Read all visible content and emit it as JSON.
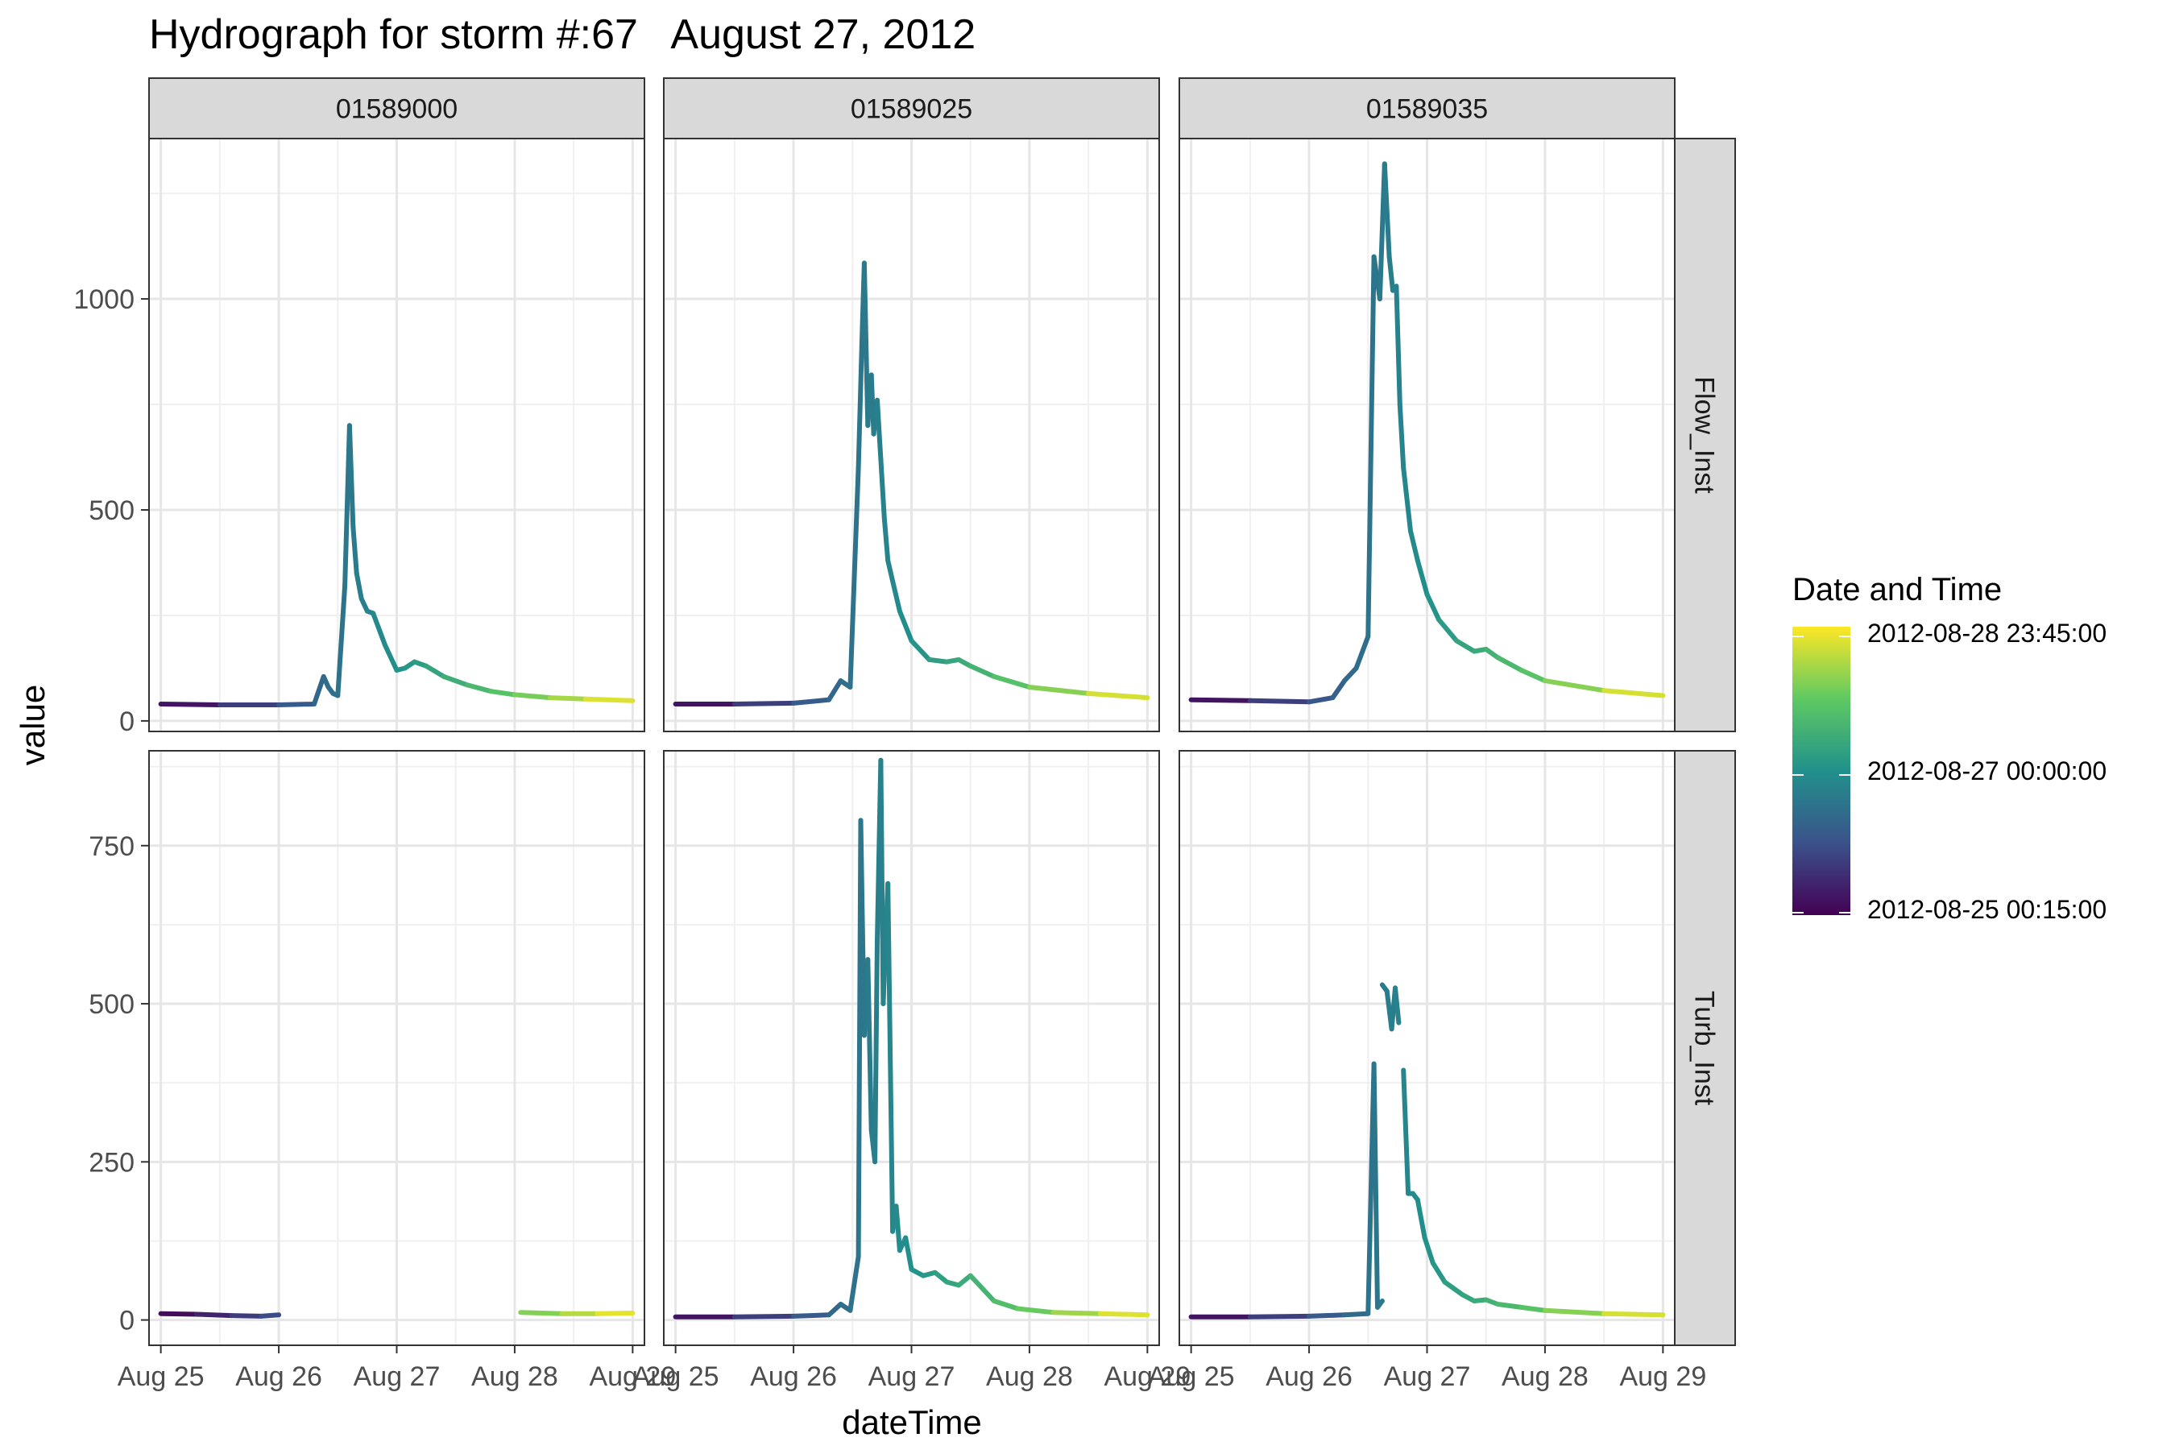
{
  "chart_data": {
    "type": "line",
    "title": "Hydrograph for storm #:67   August 27, 2012",
    "xlabel": "dateTime",
    "ylabel": "value",
    "x_tick_labels": [
      "Aug 25",
      "Aug 26",
      "Aug 27",
      "Aug 28",
      "Aug 29"
    ],
    "x_ticks_days": [
      25,
      26,
      27,
      28,
      29
    ],
    "xlim_days": [
      24.9,
      29.1
    ],
    "columns": [
      "01589000",
      "01589025",
      "01589035"
    ],
    "rows": [
      {
        "label": "Flow_Inst",
        "ylim": [
          -25,
          1380
        ],
        "y_ticks": [
          0,
          500,
          1000
        ],
        "y_minor": [
          250,
          750,
          1250
        ]
      },
      {
        "label": "Turb_Inst",
        "ylim": [
          -40,
          900
        ],
        "y_ticks": [
          0,
          250,
          500,
          750
        ],
        "y_minor": [
          125,
          375,
          625,
          875
        ]
      }
    ],
    "grid": true,
    "legend": {
      "title": "Date and Time",
      "placement": "right",
      "labels": [
        "2012-08-28 23:45:00",
        "2012-08-27 00:00:00",
        "2012-08-25 00:15:00"
      ],
      "colors": [
        "#440154",
        "#3b528b",
        "#21918c",
        "#5ec962",
        "#fde725"
      ]
    },
    "panels": [
      {
        "column": "01589000",
        "row": "Flow_Inst",
        "segments": [
          {
            "x": [
              25.0,
              25.5,
              26.0,
              26.3,
              26.38,
              26.42,
              26.46,
              26.5,
              26.56,
              26.6,
              26.63,
              26.66,
              26.7,
              26.75,
              26.8,
              26.9,
              27.0,
              27.07,
              27.15,
              27.25,
              27.4,
              27.6,
              27.8,
              28.0,
              28.3,
              28.6,
              29.0
            ],
            "y": [
              40,
              38,
              38,
              40,
              105,
              80,
              65,
              60,
              320,
              700,
              460,
              350,
              290,
              260,
              255,
              180,
              120,
              125,
              140,
              130,
              105,
              85,
              70,
              62,
              55,
              52,
              48
            ]
          }
        ]
      },
      {
        "column": "01589025",
        "row": "Flow_Inst",
        "segments": [
          {
            "x": [
              25.0,
              25.5,
              26.0,
              26.3,
              26.4,
              26.48,
              26.55,
              26.58,
              26.6,
              26.63,
              26.66,
              26.68,
              26.71,
              26.74,
              26.77,
              26.8,
              26.85,
              26.9,
              27.0,
              27.15,
              27.3,
              27.4,
              27.5,
              27.7,
              28.0,
              28.5,
              29.0
            ],
            "y": [
              40,
              40,
              42,
              50,
              95,
              80,
              600,
              900,
              1085,
              700,
              820,
              680,
              760,
              620,
              480,
              380,
              320,
              260,
              190,
              145,
              140,
              145,
              130,
              105,
              80,
              65,
              55
            ]
          }
        ]
      },
      {
        "column": "01589035",
        "row": "Flow_Inst",
        "segments": [
          {
            "x": [
              25.0,
              25.5,
              26.0,
              26.2,
              26.3,
              26.4,
              26.5,
              26.55,
              26.6,
              26.64,
              26.68,
              26.71,
              26.74,
              26.77,
              26.8,
              26.86,
              26.92,
              27.0,
              27.1,
              27.25,
              27.4,
              27.5,
              27.6,
              27.8,
              28.0,
              28.5,
              29.0
            ],
            "y": [
              50,
              48,
              45,
              55,
              95,
              125,
              200,
              1100,
              1000,
              1320,
              1100,
              1020,
              1030,
              750,
              600,
              450,
              380,
              300,
              240,
              190,
              165,
              170,
              150,
              120,
              95,
              72,
              60
            ]
          }
        ]
      },
      {
        "column": "01589000",
        "row": "Turb_Inst",
        "segments": [
          {
            "x": [
              25.0,
              25.3,
              25.6,
              25.85,
              26.0
            ],
            "y": [
              10,
              9,
              7,
              6,
              8
            ]
          },
          {
            "x": [
              28.05,
              28.4,
              28.7,
              29.0
            ],
            "y": [
              12,
              10,
              10,
              11
            ]
          }
        ]
      },
      {
        "column": "01589025",
        "row": "Turb_Inst",
        "segments": [
          {
            "x": [
              25.0,
              25.5,
              26.0,
              26.3,
              26.4,
              26.48,
              26.55,
              26.57,
              26.6,
              26.63,
              26.66,
              26.69,
              26.71,
              26.74,
              26.76,
              26.8,
              26.84,
              26.87,
              26.9,
              26.95,
              27.0,
              27.1,
              27.2,
              27.3,
              27.4,
              27.5,
              27.7,
              27.9,
              28.2,
              28.6,
              29.0
            ],
            "y": [
              5,
              5,
              6,
              8,
              25,
              15,
              100,
              790,
              450,
              570,
              300,
              250,
              600,
              885,
              500,
              690,
              140,
              180,
              110,
              130,
              80,
              70,
              75,
              60,
              55,
              70,
              30,
              18,
              12,
              10,
              8
            ]
          }
        ]
      },
      {
        "column": "01589035",
        "row": "Turb_Inst",
        "segments": [
          {
            "x": [
              25.0,
              25.5,
              26.0,
              26.3,
              26.5,
              26.55,
              26.58,
              26.62
            ],
            "y": [
              5,
              5,
              6,
              8,
              10,
              405,
              20,
              30
            ]
          },
          {
            "x": [
              26.62,
              26.66,
              26.7,
              26.73,
              26.76
            ],
            "y": [
              530,
              520,
              460,
              525,
              470
            ]
          },
          {
            "x": [
              26.8,
              26.84,
              26.88,
              26.92,
              26.98,
              27.05,
              27.15,
              27.3,
              27.4,
              27.5,
              27.6,
              27.8,
              28.0,
              28.5,
              29.0
            ],
            "y": [
              395,
              200,
              200,
              190,
              130,
              90,
              60,
              40,
              30,
              32,
              25,
              20,
              15,
              10,
              8
            ]
          }
        ]
      }
    ]
  }
}
